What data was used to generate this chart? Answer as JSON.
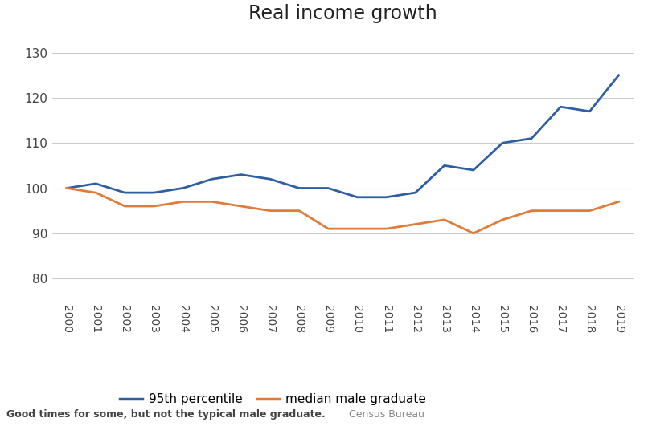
{
  "title": "Real income growth",
  "years": [
    2000,
    2001,
    2002,
    2003,
    2004,
    2005,
    2006,
    2007,
    2008,
    2009,
    2010,
    2011,
    2012,
    2013,
    2014,
    2015,
    2016,
    2017,
    2018,
    2019
  ],
  "percentile_95": [
    100,
    101,
    99,
    99,
    100,
    102,
    103,
    102,
    100,
    100,
    98,
    98,
    99,
    105,
    104,
    110,
    111,
    118,
    117,
    125
  ],
  "median_male_grad": [
    100,
    99,
    96,
    96,
    97,
    97,
    96,
    95,
    95,
    91,
    91,
    91,
    92,
    93,
    90,
    93,
    95,
    95,
    95,
    97
  ],
  "line_color_95": "#2e5fa3",
  "line_color_median": "#e07b39",
  "ylim": [
    75,
    135
  ],
  "yticks": [
    80,
    90,
    100,
    110,
    120,
    130
  ],
  "legend_label_95": "95th percentile",
  "legend_label_median": "median male graduate",
  "footnote_bold": "Good times for some, but not the typical male graduate.",
  "footnote_normal": "Census Bureau",
  "background_color": "#ffffff",
  "grid_color": "#cccccc"
}
